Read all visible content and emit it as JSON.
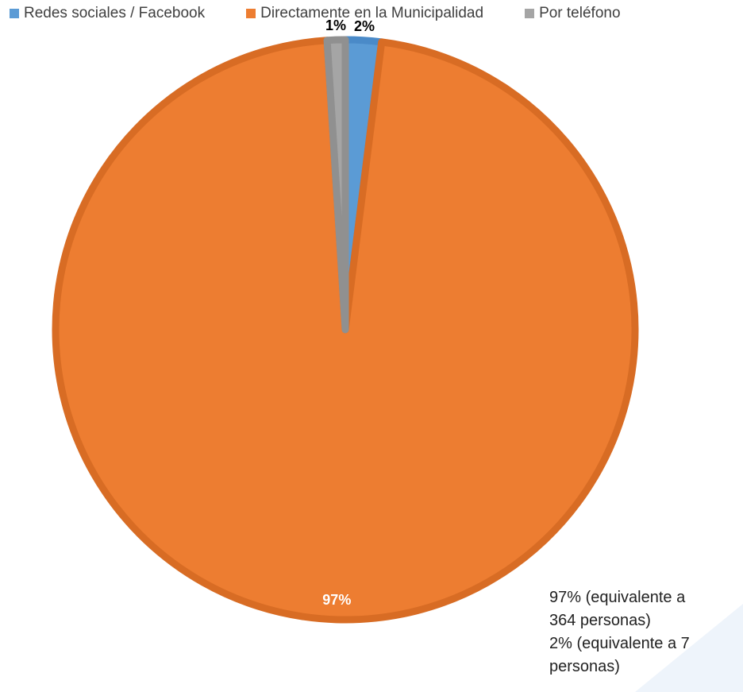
{
  "chart_data": {
    "type": "pie",
    "categories": [
      "Redes sociales / Facebook",
      "Directamente en la Municipalidad",
      "Por teléfono"
    ],
    "values": [
      2,
      97,
      1
    ],
    "data_labels": [
      "2%",
      "97%",
      "1%"
    ],
    "colors": [
      "#5B9BD5",
      "#ED7D31",
      "#A5A5A5"
    ],
    "border_colors": [
      "#4A8AC8",
      "#D86C24",
      "#909090"
    ],
    "legend_position": "top"
  },
  "notes": {
    "line1": "97% (equivalente a",
    "line2": "364 personas)",
    "line3": "2% (equivalente a 7",
    "line4": "personas)"
  }
}
